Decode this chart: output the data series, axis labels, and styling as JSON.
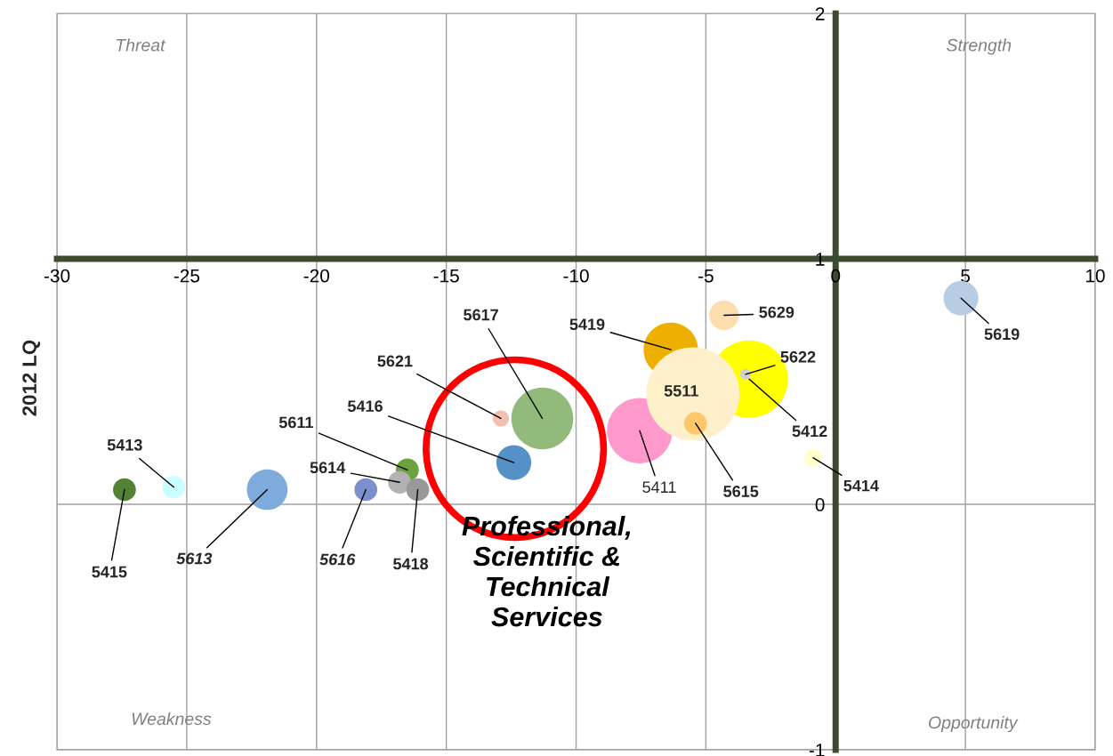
{
  "chart_data": {
    "type": "bubble",
    "ylabel": "2012 LQ",
    "xlim": [
      -30,
      10
    ],
    "xticks": [
      -30,
      -25,
      -20,
      -15,
      -10,
      -5,
      0,
      5,
      10
    ],
    "ylim": [
      -1,
      2
    ],
    "yticks": [
      -1,
      0,
      1,
      2
    ],
    "grid": true,
    "legend": false,
    "marker": "circle",
    "annotations": [
      "Threat",
      "Strength",
      "Weakness",
      "Opportunity",
      "Professional,\nScientific &\nTechnical\nServices"
    ],
    "series": [
      {
        "name": "5415",
        "color": "#548235",
        "x": [
          -27.4
        ],
        "values": [
          0.06
        ],
        "sizes": [
          0.06
        ]
      },
      {
        "name": "5413",
        "color": "#ccffff",
        "x": [
          -25.5
        ],
        "values": [
          0.07
        ],
        "sizes": [
          0.06
        ]
      },
      {
        "name": "5613",
        "color": "#7eaadc",
        "x": [
          -21.9
        ],
        "values": [
          0.06
        ],
        "sizes": [
          0.19
        ]
      },
      {
        "name": "5616",
        "color": "#7b8fcc",
        "x": [
          -18.1
        ],
        "values": [
          0.06
        ],
        "sizes": [
          0.06
        ]
      },
      {
        "name": "5611",
        "color": "#6aa33e",
        "x": [
          -16.5
        ],
        "values": [
          0.14
        ],
        "sizes": [
          0.06
        ]
      },
      {
        "name": "5614",
        "color": "#b2b2b2",
        "x": [
          -16.8
        ],
        "values": [
          0.09
        ],
        "sizes": [
          0.06
        ]
      },
      {
        "name": "5418",
        "color": "#999999",
        "x": [
          -16.1
        ],
        "values": [
          0.06
        ],
        "sizes": [
          0.06
        ]
      },
      {
        "name": "5617",
        "color": "#92bb7b",
        "x": [
          -11.3
        ],
        "values": [
          0.35
        ],
        "sizes": [
          0.44
        ]
      },
      {
        "name": "5621",
        "color": "#f4bfb0",
        "x": [
          -12.9
        ],
        "values": [
          0.35
        ],
        "sizes": [
          0.03
        ]
      },
      {
        "name": "5416",
        "color": "#5590c7",
        "x": [
          -12.4
        ],
        "values": [
          0.17
        ],
        "sizes": [
          0.14
        ]
      },
      {
        "name": "5419",
        "color": "#eeb000",
        "x": [
          -6.35
        ],
        "values": [
          0.63
        ],
        "sizes": [
          0.34
        ]
      },
      {
        "name": "5411",
        "color": "#ff99cc",
        "x": [
          -7.55
        ],
        "values": [
          0.3
        ],
        "sizes": [
          0.49
        ]
      },
      {
        "name": "5412",
        "color": "#ffff00",
        "x": [
          -3.33
        ],
        "values": [
          0.51
        ],
        "sizes": [
          0.69
        ]
      },
      {
        "name": "5511",
        "color": "#fff0cc",
        "x": [
          -5.5
        ],
        "values": [
          0.45
        ],
        "sizes": [
          1
        ]
      },
      {
        "name": "5615",
        "color": "#fec86a",
        "x": [
          -5.4
        ],
        "values": [
          0.33
        ],
        "sizes": [
          0.06
        ]
      },
      {
        "name": "5622",
        "color": "#d0d0d0",
        "x": [
          -3.47
        ],
        "values": [
          0.53
        ],
        "sizes": [
          0.013
        ]
      },
      {
        "name": "5629",
        "color": "#fddcae",
        "x": [
          -4.3
        ],
        "values": [
          0.77
        ],
        "sizes": [
          0.1
        ]
      },
      {
        "name": "5414",
        "color": "#ffffcc",
        "x": [
          -0.87
        ],
        "values": [
          0.19
        ],
        "sizes": [
          0.036
        ]
      },
      {
        "name": "5619",
        "color": "#b8cce4",
        "x": [
          4.83
        ],
        "values": [
          0.84
        ],
        "sizes": [
          0.14
        ]
      }
    ]
  }
}
